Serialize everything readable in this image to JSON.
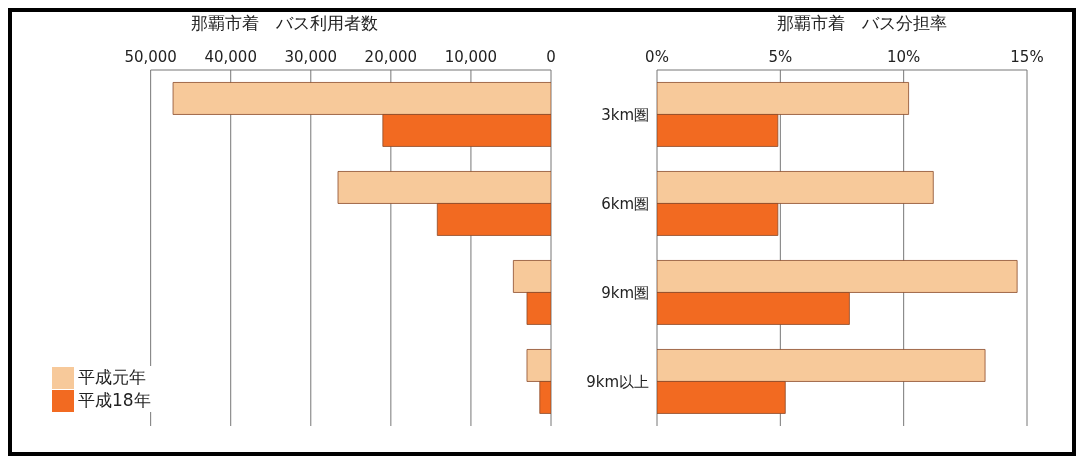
{
  "chart_data": [
    {
      "type": "bar",
      "orientation": "horizontal",
      "title": "那覇市着　バス利用者数",
      "categories": [
        null,
        null,
        null,
        null
      ],
      "tick_labels": "x",
      "series": [
        {
          "name": "平成元年",
          "color": "#f7c99a",
          "values": [
            47200,
            26600,
            4700,
            3000
          ]
        },
        {
          "name": "平成18年",
          "color": "#f26a21",
          "values": [
            21000,
            14200,
            3000,
            1400
          ]
        }
      ],
      "xlim": [
        50000,
        0
      ],
      "xticks": [
        {
          "value": 50000,
          "label": "50,000"
        },
        {
          "value": 40000,
          "label": "40,000"
        },
        {
          "value": 30000,
          "label": "30,000"
        },
        {
          "value": 20000,
          "label": "20,000"
        },
        {
          "value": 10000,
          "label": "10,000"
        },
        0
      ],
      "grid": "x",
      "legend": "bottom left"
    },
    {
      "type": "bar",
      "orientation": "horizontal",
      "title": "那覇市着　バス分担率",
      "categories": [
        "3km圏",
        "6km圏",
        "9km圏",
        "9km以上"
      ],
      "series": [
        {
          "color": "#f7c99a",
          "values": [
            10.2,
            11.2,
            14.6,
            13.3
          ]
        },
        {
          "color": "#f26a21",
          "values": [
            4.9,
            4.9,
            7.8,
            5.2
          ]
        }
      ],
      "xlim": [
        0,
        15
      ],
      "xticks": [
        {
          "value": 0,
          "label": "0%"
        },
        {
          "value": 5,
          "label": "5%"
        },
        {
          "value": 10,
          "label": "10%"
        },
        {
          "value": 15,
          "label": "15%"
        }
      ],
      "grid": "x"
    }
  ]
}
